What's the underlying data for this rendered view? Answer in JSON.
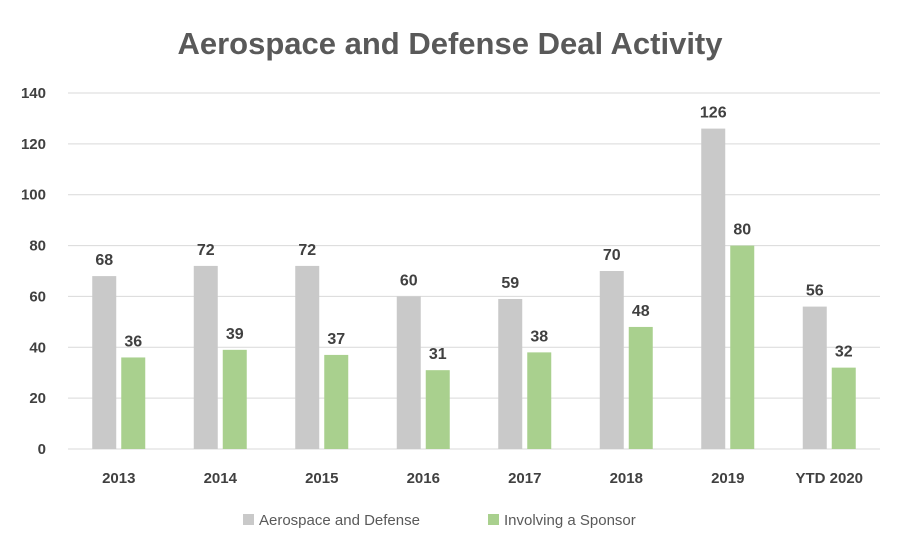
{
  "chart_data": {
    "type": "bar",
    "title": "Aerospace and Defense Deal Activity",
    "categories": [
      "2013",
      "2014",
      "2015",
      "2016",
      "2017",
      "2018",
      "2019",
      "YTD 2020"
    ],
    "series": [
      {
        "name": "Aerospace and Defense",
        "values": [
          68,
          72,
          72,
          60,
          59,
          70,
          126,
          56
        ],
        "color": "#c9c9c9"
      },
      {
        "name": "Involving a Sponsor",
        "values": [
          36,
          39,
          37,
          31,
          38,
          48,
          80,
          32
        ],
        "color": "#a9d08e"
      }
    ],
    "ylim": [
      0,
      140
    ],
    "yticks": [
      0,
      20,
      40,
      60,
      80,
      100,
      120,
      140
    ],
    "grid": true,
    "legend_position": "bottom",
    "data_labels": true
  }
}
